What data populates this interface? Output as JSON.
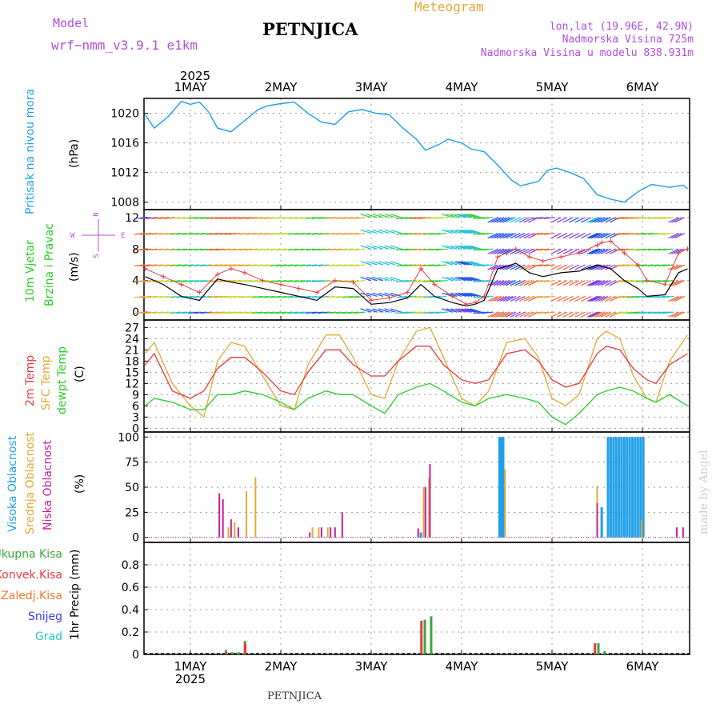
{
  "header": {
    "model_label": "Model",
    "model_name": "wrf−nmm_v3.9.1  e1km",
    "station": "PETNJICA",
    "meteogram": "Meteogram",
    "lonlat": "lon,lat (19.96E, 42.9N)",
    "elevation": "Nadmorska Visina 725m",
    "model_elevation": "Nadmorska Visina u modelu 838.931m",
    "footer_station": "PETNJICA",
    "watermark": "made by Angel",
    "year_top": "2025",
    "year_bottom": "2025",
    "days": [
      "1MAY",
      "2MAY",
      "3MAY",
      "4MAY",
      "5MAY",
      "6MAY"
    ]
  },
  "colors": {
    "pressure": "#1f9fe8",
    "temp2m": "#e8393a",
    "sfc": "#e3a835",
    "dewpt": "#25cf25",
    "wind": "#000000",
    "gust": "#e04040",
    "high_cloud": "#1f9fe8",
    "mid_cloud": "#e3a835",
    "low_cloud": "#c81e9b",
    "rain_total": "#3aa83a",
    "rain_conv": "#e8393a",
    "label_purple": "#b04ed8",
    "label_orange": "#e3a835"
  },
  "panels": {
    "pressure": {
      "label": "Pritisak na nivou mora",
      "unit": "(hPa)",
      "ticks": [
        "1020",
        "1016",
        "1012",
        "1008"
      ]
    },
    "wind": {
      "label1": "10m Vjetar",
      "label2": "Brzina i Pravac",
      "unit": "(m/s)",
      "compass_n": "N",
      "compass_s": "S",
      "compass_w": "W",
      "compass_e": "E",
      "ticks": [
        "12",
        "8",
        "4",
        "0"
      ]
    },
    "temperature": {
      "label_2m": "2m Temp",
      "label_sfc": "SFC Temp",
      "label_dew": "dewpt Temp",
      "unit": "(C)",
      "ticks": [
        "27",
        "24",
        "21",
        "18",
        "15",
        "12",
        "9",
        "6",
        "3",
        "0"
      ]
    },
    "clouds": {
      "label_high": "Visoka Oblacnost",
      "label_mid": "Srednja Oblacnost",
      "label_low": "Niska Oblacnost",
      "unit": "(%)",
      "ticks": [
        "100",
        "75",
        "50",
        "25",
        "0"
      ]
    },
    "precip": {
      "legend": [
        "Ukupna Kisa",
        "Konvek.Kisa",
        "Zaledj.Kisa",
        "Snijeg",
        "Grad"
      ],
      "legend_colors": [
        "#3aa83a",
        "#e8393a",
        "#f07830",
        "#3a3ae8",
        "#25c8c8"
      ],
      "unit": "1hr Precip (mm)",
      "ticks": [
        "0.8",
        "0.6",
        "0.4",
        "0.2",
        "0"
      ]
    }
  },
  "chart_data": [
    {
      "type": "line",
      "name": "pressure",
      "x": [
        0.5,
        0.6,
        0.75,
        0.9,
        1.0,
        1.1,
        1.2,
        1.3,
        1.45,
        1.65,
        1.75,
        1.85,
        2.0,
        2.15,
        2.2,
        2.3,
        2.45,
        2.6,
        2.75,
        2.9,
        3.05,
        3.2,
        3.35,
        3.5,
        3.6,
        3.75,
        3.85,
        4.0,
        4.1,
        4.25,
        4.4,
        4.55,
        4.65,
        4.85,
        4.95,
        5.05,
        5.2,
        5.35,
        5.5,
        5.65,
        5.8,
        5.95,
        6.1,
        6.3,
        6.45,
        6.5
      ],
      "y": [
        1019.8,
        1018.0,
        1019.5,
        1021.6,
        1021.2,
        1021.5,
        1020.2,
        1018.0,
        1017.5,
        1019.5,
        1020.5,
        1021.0,
        1021.3,
        1021.5,
        1021.0,
        1020.0,
        1018.8,
        1018.5,
        1020.2,
        1020.5,
        1020.0,
        1019.8,
        1018.0,
        1016.5,
        1015.0,
        1015.8,
        1016.5,
        1016.0,
        1015.2,
        1014.8,
        1013.0,
        1011.0,
        1010.2,
        1010.8,
        1012.3,
        1012.6,
        1012.0,
        1011.2,
        1009.0,
        1008.4,
        1008.0,
        1009.4,
        1010.4,
        1010.0,
        1010.3,
        1009.8
      ],
      "ylim": [
        1007,
        1022
      ]
    },
    {
      "type": "line",
      "name": "wind",
      "x": [
        0.5,
        0.7,
        0.9,
        1.1,
        1.3,
        1.45,
        1.6,
        1.8,
        2.0,
        2.2,
        2.4,
        2.6,
        2.8,
        3.0,
        3.2,
        3.4,
        3.55,
        3.7,
        3.9,
        4.05,
        4.15,
        4.25,
        4.4,
        4.5,
        4.6,
        4.75,
        4.9,
        5.1,
        5.3,
        5.5,
        5.55,
        5.65,
        5.8,
        5.95,
        6.05,
        6.25,
        6.4,
        6.5
      ],
      "speed": [
        4.5,
        3.5,
        2.0,
        1.5,
        4.2,
        3.8,
        3.5,
        3.0,
        2.5,
        2.0,
        1.5,
        3.2,
        3.0,
        1.0,
        1.2,
        1.8,
        3.5,
        2.0,
        1.2,
        0.8,
        1.0,
        1.5,
        5.5,
        5.8,
        6.2,
        5.0,
        4.5,
        5.0,
        5.2,
        6.0,
        5.8,
        5.5,
        4.0,
        3.0,
        2.0,
        2.2,
        5.0,
        5.5
      ],
      "gust": [
        5.5,
        4.5,
        3.5,
        2.5,
        4.8,
        5.5,
        5.0,
        4.0,
        3.5,
        3.0,
        2.5,
        4.0,
        3.8,
        1.5,
        1.8,
        2.5,
        5.5,
        3.5,
        2.0,
        1.0,
        1.2,
        2.0,
        7.0,
        7.5,
        8.0,
        7.0,
        6.5,
        7.0,
        7.5,
        8.5,
        8.8,
        9.0,
        7.5,
        6.0,
        4.0,
        3.5,
        7.5,
        8.0
      ],
      "ylim": [
        -1,
        13
      ]
    },
    {
      "type": "line",
      "name": "temperature",
      "x": [
        0.5,
        0.6,
        0.8,
        1.0,
        1.15,
        1.3,
        1.45,
        1.6,
        1.8,
        2.0,
        2.15,
        2.3,
        2.5,
        2.65,
        2.8,
        3.0,
        3.15,
        3.3,
        3.5,
        3.65,
        3.8,
        4.0,
        4.15,
        4.3,
        4.5,
        4.7,
        4.85,
        5.0,
        5.15,
        5.3,
        5.5,
        5.6,
        5.75,
        5.9,
        6.05,
        6.15,
        6.3,
        6.5
      ],
      "temp2m": [
        17,
        20,
        10,
        8,
        10,
        16,
        19,
        19,
        15,
        10,
        9,
        15,
        21,
        21,
        17,
        14,
        14,
        18,
        22,
        22,
        17,
        13,
        12,
        13,
        20,
        21,
        18,
        13,
        11,
        12,
        20,
        22,
        21,
        16,
        13,
        12,
        17,
        20
      ],
      "sfc": [
        20,
        23,
        12,
        6,
        3,
        18,
        23,
        22,
        14,
        6,
        5,
        17,
        25,
        25,
        19,
        9,
        8,
        18,
        26,
        27,
        19,
        8,
        6,
        10,
        23,
        24,
        19,
        8,
        6,
        9,
        24,
        26,
        24,
        14,
        8,
        7,
        18,
        25
      ],
      "dewpt": [
        6,
        8,
        7,
        5,
        5,
        9,
        9,
        10,
        9,
        7,
        5,
        8,
        10,
        9,
        9,
        6,
        4,
        9,
        11,
        12,
        10,
        7,
        6,
        8,
        9,
        8,
        7,
        3,
        1,
        4,
        9,
        10,
        11,
        10,
        8,
        7,
        9,
        6
      ],
      "ylim": [
        -1,
        29
      ]
    },
    {
      "type": "bar",
      "name": "clouds",
      "series": [
        {
          "name": "Visoka Oblacnost",
          "x": [
            3.55,
            4.42,
            4.44,
            4.46,
            5.55,
            5.62,
            5.65,
            5.68,
            5.71,
            5.74,
            5.77,
            5.8,
            5.83,
            5.86,
            5.89,
            5.92,
            5.95,
            5.98,
            6.01
          ],
          "values": [
            5,
            100,
            100,
            100,
            30,
            100,
            100,
            100,
            100,
            100,
            100,
            100,
            100,
            100,
            100,
            100,
            100,
            100,
            100
          ]
        },
        {
          "name": "Srednja Oblacnost",
          "x": [
            1.42,
            1.49,
            1.62,
            1.72,
            2.35,
            2.42,
            2.52,
            3.58,
            3.64,
            4.48,
            5.5,
            5.99
          ],
          "values": [
            10,
            15,
            46,
            60,
            10,
            10,
            10,
            50,
            60,
            68,
            51,
            17
          ],
          "color_note": "orange"
        },
        {
          "name": "Niska Oblacnost",
          "x": [
            1.32,
            1.36,
            1.45,
            1.53,
            2.32,
            2.45,
            2.55,
            2.6,
            2.68,
            3.52,
            3.6,
            3.65,
            5.5,
            6.38,
            6.45
          ],
          "values": [
            44,
            38,
            18,
            10,
            5,
            10,
            10,
            10,
            25,
            9,
            50,
            73,
            34,
            10,
            10
          ]
        }
      ],
      "ylim": [
        -5,
        105
      ]
    },
    {
      "type": "bar",
      "name": "precip",
      "series": [
        {
          "name": "Ukupna Kisa",
          "x": [
            1.38,
            1.45,
            1.52,
            1.59,
            3.58,
            3.65,
            5.5,
            5.57
          ],
          "values": [
            0.04,
            0.02,
            0.02,
            0.12,
            0.31,
            0.34,
            0.1,
            0.03
          ]
        },
        {
          "name": "Konvek.Kisa",
          "x": [
            1.4,
            1.61,
            3.56,
            5.48
          ],
          "values": [
            0.02,
            0.1,
            0.3,
            0.1
          ]
        }
      ],
      "ylim": [
        0,
        1.0
      ]
    }
  ]
}
